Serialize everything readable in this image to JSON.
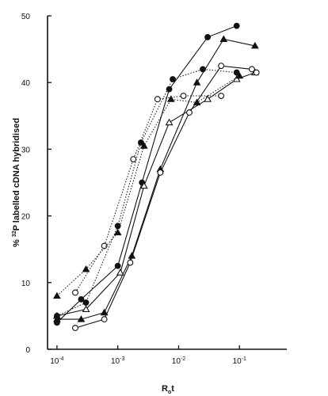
{
  "chart_data": {
    "type": "line",
    "xscale": "log",
    "xlim": [
      7e-05,
      0.6
    ],
    "ylim": [
      0,
      50
    ],
    "x_ticks": [
      0.0001,
      0.001,
      0.01,
      0.1
    ],
    "x_tick_labels": [
      {
        "base": "10",
        "exp": "-4"
      },
      {
        "base": "10",
        "exp": "-3"
      },
      {
        "base": "10",
        "exp": "-2"
      },
      {
        "base": "10",
        "exp": "-1"
      }
    ],
    "y_ticks": [
      0,
      10,
      20,
      30,
      40,
      50
    ],
    "y_tick_labels": [
      "0",
      "10",
      "20",
      "30",
      "40",
      "50"
    ],
    "xlabel": {
      "main": "R",
      "sub": "o",
      "rest": "t"
    },
    "ylabel": {
      "prefix": "% ",
      "sup": "32",
      "rest": "P labelled cDNA hybridised"
    },
    "grid": false,
    "legend": "none",
    "series": [
      {
        "marker": "filled-circle",
        "line": "solid",
        "points": [
          [
            0.0001,
            4.0
          ],
          [
            0.00025,
            7.5
          ],
          [
            0.001,
            12.5
          ],
          [
            0.0025,
            25.0
          ],
          [
            0.007,
            39.0
          ],
          [
            0.03,
            46.8
          ],
          [
            0.09,
            48.5
          ]
        ]
      },
      {
        "marker": "filled-triangle",
        "line": "solid",
        "points": [
          [
            0.0001,
            4.5
          ],
          [
            0.00025,
            4.5
          ],
          [
            0.0006,
            5.5
          ],
          [
            0.0017,
            14.0
          ],
          [
            0.005,
            27.0
          ],
          [
            0.02,
            40.0
          ],
          [
            0.055,
            46.5
          ],
          [
            0.18,
            45.5
          ]
        ]
      },
      {
        "marker": "open-triangle",
        "line": "solid",
        "points": [
          [
            0.0001,
            5.0
          ],
          [
            0.0003,
            6.0
          ],
          [
            0.0011,
            11.5
          ],
          [
            0.0027,
            24.5
          ],
          [
            0.007,
            34.0
          ],
          [
            0.03,
            37.5
          ],
          [
            0.09,
            40.5
          ],
          [
            0.18,
            41.5
          ]
        ]
      },
      {
        "marker": "open-circle",
        "line": "solid",
        "points": [
          [
            0.0002,
            3.2
          ],
          [
            0.0006,
            4.5
          ],
          [
            0.0016,
            13.0
          ],
          [
            0.005,
            26.5
          ],
          [
            0.015,
            35.5
          ],
          [
            0.05,
            42.5
          ],
          [
            0.16,
            42.0
          ],
          [
            0.19,
            41.5
          ]
        ]
      },
      {
        "marker": "open-circle",
        "line": "dotted",
        "points": [
          [
            0.0002,
            8.5
          ],
          [
            0.0006,
            15.5
          ],
          [
            0.0018,
            28.5
          ],
          [
            0.0045,
            37.5
          ],
          [
            0.012,
            38.0
          ],
          [
            0.05,
            38.0
          ]
        ]
      },
      {
        "marker": "filled-circle",
        "line": "dotted",
        "points": [
          [
            0.0001,
            5.0
          ],
          [
            0.0003,
            7.0
          ],
          [
            0.001,
            18.5
          ],
          [
            0.0024,
            31.0
          ],
          [
            0.008,
            40.5
          ],
          [
            0.025,
            42.0
          ],
          [
            0.09,
            41.5
          ]
        ]
      },
      {
        "marker": "filled-triangle",
        "line": "dotted",
        "points": [
          [
            0.0001,
            8.0
          ],
          [
            0.0003,
            12.0
          ],
          [
            0.001,
            17.5
          ],
          [
            0.0027,
            30.5
          ],
          [
            0.0075,
            37.5
          ],
          [
            0.02,
            37.0
          ],
          [
            0.1,
            41.0
          ]
        ]
      }
    ]
  }
}
